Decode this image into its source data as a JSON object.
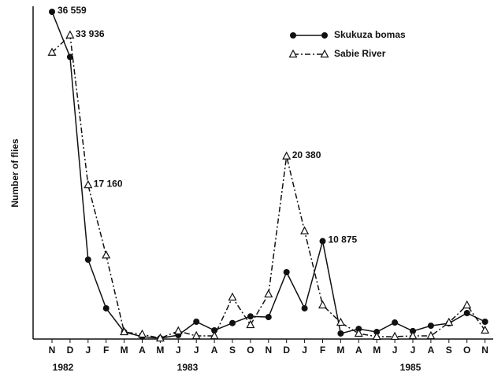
{
  "chart_data": {
    "type": "line",
    "y_label": "Number of flies",
    "categories": [
      "N",
      "D",
      "J",
      "F",
      "M",
      "A",
      "M",
      "J",
      "J",
      "A",
      "S",
      "O",
      "N",
      "D",
      "J",
      "F",
      "M",
      "A",
      "M",
      "J",
      "J",
      "A",
      "S",
      "O",
      "N"
    ],
    "year_labels": [
      "1982",
      "1983",
      "1985"
    ],
    "ylim": [
      0,
      37000
    ],
    "legend": "top-right",
    "series": [
      {
        "name": "Skukuza bomas",
        "color": "#111111",
        "marker": "filled-circle",
        "dash": "solid",
        "values": [
          36559,
          31500,
          8800,
          3350,
          700,
          180,
          0,
          350,
          1850,
          880,
          1700,
          2450,
          2370,
          7400,
          3350,
          10875,
          530,
          1050,
          700,
          1760,
          800,
          1400,
          1670,
          2820,
          1850
        ],
        "value_labels": [
          "36 559",
          null,
          null,
          null,
          null,
          null,
          null,
          null,
          null,
          null,
          null,
          null,
          null,
          null,
          null,
          "10 875",
          null,
          null,
          null,
          null,
          null,
          null,
          null,
          null,
          null
        ]
      },
      {
        "name": "Sabie River",
        "color": "#111111",
        "marker": "open-triangle",
        "dash": "dash-dot",
        "values": [
          32000,
          33936,
          17160,
          9300,
          700,
          440,
          0,
          800,
          260,
          260,
          4580,
          1500,
          4930,
          20380,
          12000,
          3700,
          1760,
          530,
          180,
          180,
          260,
          260,
          1760,
          3700,
          880
        ],
        "value_labels": [
          null,
          "33 936",
          "17 160",
          null,
          null,
          null,
          null,
          null,
          null,
          null,
          null,
          null,
          null,
          "20 380",
          null,
          null,
          null,
          null,
          null,
          null,
          null,
          null,
          null,
          null,
          null
        ]
      }
    ]
  }
}
